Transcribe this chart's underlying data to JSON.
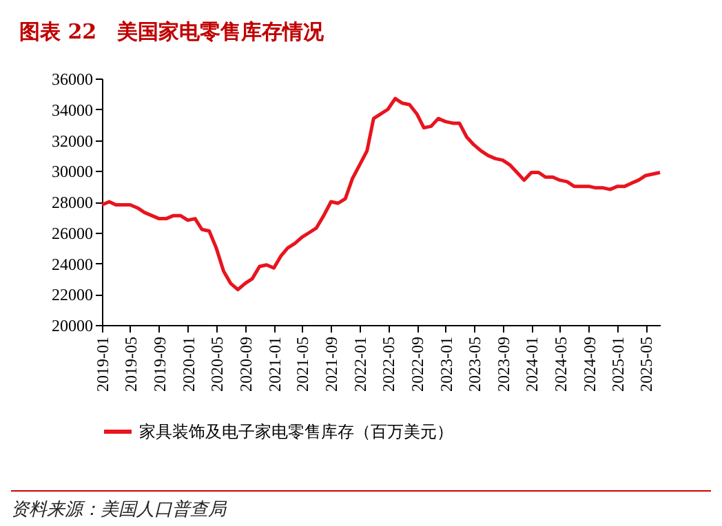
{
  "chart_data": {
    "type": "line",
    "title": "图表 22　美国家电零售库存情况",
    "annotations": [
      "资料来源：美国人口普查局"
    ],
    "x": [
      "2019-01",
      "2019-02",
      "2019-03",
      "2019-04",
      "2019-05",
      "2019-06",
      "2019-07",
      "2019-08",
      "2019-09",
      "2019-10",
      "2019-11",
      "2019-12",
      "2020-01",
      "2020-02",
      "2020-03",
      "2020-04",
      "2020-05",
      "2020-06",
      "2020-07",
      "2020-08",
      "2020-09",
      "2020-10",
      "2020-11",
      "2020-12",
      "2021-01",
      "2021-02",
      "2021-03",
      "2021-04",
      "2021-05",
      "2021-06",
      "2021-07",
      "2021-08",
      "2021-09",
      "2021-10",
      "2021-11",
      "2021-12",
      "2022-01",
      "2022-02",
      "2022-03",
      "2022-04",
      "2022-05",
      "2022-06",
      "2022-07",
      "2022-08",
      "2022-09",
      "2022-10",
      "2022-11",
      "2022-12",
      "2023-01",
      "2023-02",
      "2023-03",
      "2023-04",
      "2023-05",
      "2023-06",
      "2023-07",
      "2023-08",
      "2023-09",
      "2023-10",
      "2023-11",
      "2023-12",
      "2024-01",
      "2024-02",
      "2024-03",
      "2024-04",
      "2024-05",
      "2024-06",
      "2024-07",
      "2024-08",
      "2024-09",
      "2024-10",
      "2024-11",
      "2024-12",
      "2025-01",
      "2025-02",
      "2025-03",
      "2025-04",
      "2025-05",
      "2025-06",
      "2025-07"
    ],
    "series": [
      {
        "name": "家具装饰及电子家电零售库存（百万美元）",
        "color": "#e8141e",
        "values": [
          27800,
          28000,
          27800,
          27800,
          27800,
          27600,
          27300,
          27100,
          26900,
          26900,
          27100,
          27100,
          26800,
          26900,
          26200,
          26100,
          25000,
          23500,
          22700,
          22300,
          22700,
          23000,
          23800,
          23900,
          23700,
          24500,
          25000,
          25300,
          25700,
          26000,
          26300,
          27100,
          28000,
          27900,
          28200,
          29500,
          30400,
          31300,
          33400,
          33700,
          34000,
          34700,
          34400,
          34300,
          33700,
          32800,
          32900,
          33400,
          33200,
          33100,
          33100,
          32200,
          31700,
          31300,
          31000,
          30800,
          30700,
          30400,
          29900,
          29400,
          29900,
          29900,
          29600,
          29600,
          29400,
          29300,
          29000,
          29000,
          29000,
          28900,
          28900,
          28800,
          29000,
          29000,
          29200,
          29400,
          29700,
          29800,
          29900
        ]
      }
    ],
    "xlim": [
      "2019-01",
      "2025-07"
    ],
    "xticks": [
      "2019-01",
      "2019-05",
      "2019-09",
      "2020-01",
      "2020-05",
      "2020-09",
      "2021-01",
      "2021-05",
      "2021-09",
      "2022-01",
      "2022-05",
      "2022-09",
      "2023-01",
      "2023-05",
      "2023-09",
      "2024-01",
      "2024-05",
      "2024-09",
      "2025-01",
      "2025-05"
    ],
    "ylim": [
      20000,
      36000
    ],
    "yticks": [
      20000,
      22000,
      24000,
      26000,
      28000,
      30000,
      32000,
      34000,
      36000
    ],
    "grid": false,
    "legend": "bottom",
    "marker": "none",
    "line_style": "solid"
  }
}
